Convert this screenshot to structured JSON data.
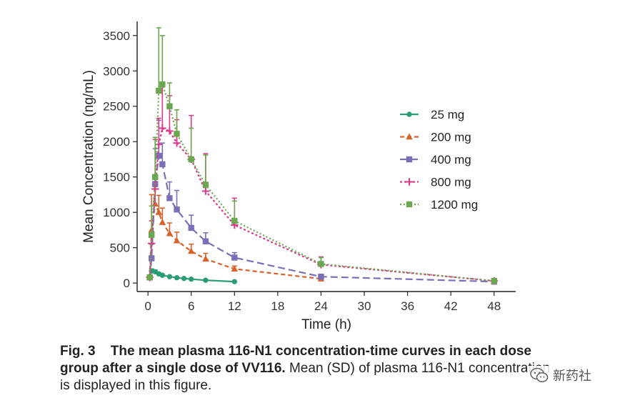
{
  "chart_data": {
    "type": "line",
    "xlabel": "Time (h)",
    "ylabel": "Mean Concentration (ng/mL)",
    "xlim": [
      -1.5,
      51
    ],
    "ylim": [
      -120,
      3700
    ],
    "xticks": [
      0,
      6,
      12,
      18,
      24,
      30,
      36,
      42,
      48
    ],
    "yticks": [
      0,
      500,
      1000,
      1500,
      2000,
      2500,
      3000,
      3500
    ],
    "legend_position": "right",
    "series": [
      {
        "name": "25 mg",
        "color": "#2a9d74",
        "marker": "circle",
        "dash": "solid",
        "x": [
          0.25,
          0.5,
          1,
          1.5,
          2,
          3,
          4,
          5,
          6,
          8,
          12
        ],
        "y": [
          90,
          170,
          160,
          130,
          110,
          90,
          75,
          65,
          55,
          40,
          20
        ],
        "sd": [
          0,
          30,
          25,
          20,
          15,
          10,
          8,
          6,
          5,
          4,
          3
        ]
      },
      {
        "name": "200 mg",
        "color": "#d9622b",
        "marker": "triangle",
        "dash": "6,4",
        "x": [
          0.25,
          0.5,
          1,
          1.5,
          2,
          3,
          4,
          6,
          8,
          12,
          24
        ],
        "y": [
          80,
          750,
          1120,
          1000,
          860,
          700,
          600,
          450,
          340,
          200,
          60
        ],
        "sd": [
          0,
          500,
          300,
          240,
          200,
          150,
          120,
          100,
          80,
          40,
          15
        ]
      },
      {
        "name": "400 mg",
        "color": "#7b6fb8",
        "marker": "square",
        "dash": "10,5",
        "x": [
          0.25,
          0.5,
          1,
          1.5,
          2,
          3,
          4,
          6,
          8,
          12,
          24,
          48
        ],
        "y": [
          80,
          350,
          1400,
          1800,
          1680,
          1200,
          1040,
          780,
          590,
          360,
          90,
          20
        ],
        "sd": [
          0,
          200,
          500,
          500,
          300,
          230,
          270,
          180,
          120,
          70,
          20,
          5
        ]
      },
      {
        "name": "800 mg",
        "color": "#d93a8b",
        "marker": "plus",
        "dash": "3,3",
        "x": [
          0.25,
          0.5,
          1,
          1.5,
          2,
          3,
          4,
          6,
          8,
          12,
          24,
          48
        ],
        "y": [
          80,
          560,
          1330,
          1960,
          2190,
          2150,
          1980,
          1750,
          1300,
          820,
          260,
          30
        ],
        "sd": [
          0,
          320,
          700,
          370,
          600,
          500,
          330,
          620,
          530,
          380,
          110,
          10
        ]
      },
      {
        "name": "1200 mg",
        "color": "#6aa84f",
        "marker": "square",
        "dash": "2,3",
        "x": [
          0.25,
          0.5,
          1,
          1.5,
          2,
          3,
          4,
          6,
          8,
          12,
          24,
          48
        ],
        "y": [
          80,
          680,
          1500,
          2720,
          2810,
          2500,
          2110,
          1750,
          1390,
          880,
          270,
          30
        ],
        "sd": [
          0,
          410,
          560,
          890,
          690,
          330,
          340,
          440,
          420,
          280,
          90,
          10
        ]
      }
    ]
  },
  "caption": {
    "label": "Fig. 3",
    "bold_text": "The mean plasma 116-N1 concentration-time curves in each dose group after a single dose of VV116.",
    "regular_text": "Mean (SD) of plasma 116-N1 concentration is displayed in this figure."
  },
  "watermark": {
    "text": "新药社"
  }
}
